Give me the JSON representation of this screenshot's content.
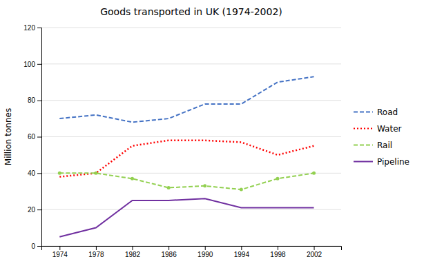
{
  "chart_data": {
    "type": "line",
    "title": "Goods transported in UK (1974-2002)",
    "ylabel": "Million tonnes",
    "x": [
      1974,
      1978,
      1982,
      1986,
      1990,
      1994,
      1998,
      2002
    ],
    "xlim": [
      1972,
      2005
    ],
    "xticks": [
      1974,
      1978,
      1982,
      1986,
      1990,
      1994,
      1998,
      2002
    ],
    "ylim": [
      0,
      120
    ],
    "yticks": [
      0,
      20,
      40,
      60,
      80,
      100,
      120
    ],
    "grid": true,
    "legend": "right",
    "series": [
      {
        "name": "Road",
        "color": "#4472C4",
        "line_style": "dashed",
        "values": [
          70,
          72,
          68,
          70,
          78,
          78,
          90,
          93
        ]
      },
      {
        "name": "Water",
        "color": "#FF0000",
        "line_style": "dotted",
        "values": [
          38,
          40,
          55,
          58,
          58,
          57,
          50,
          55
        ]
      },
      {
        "name": "Rail",
        "color": "#92D050",
        "line_style": "dashed",
        "marker": "point",
        "values": [
          40,
          40,
          37,
          32,
          33,
          31,
          37,
          40
        ]
      },
      {
        "name": "Pipeline",
        "color": "#7030A0",
        "line_style": "solid",
        "values": [
          5,
          10,
          25,
          25,
          26,
          21,
          21,
          21
        ]
      }
    ]
  }
}
